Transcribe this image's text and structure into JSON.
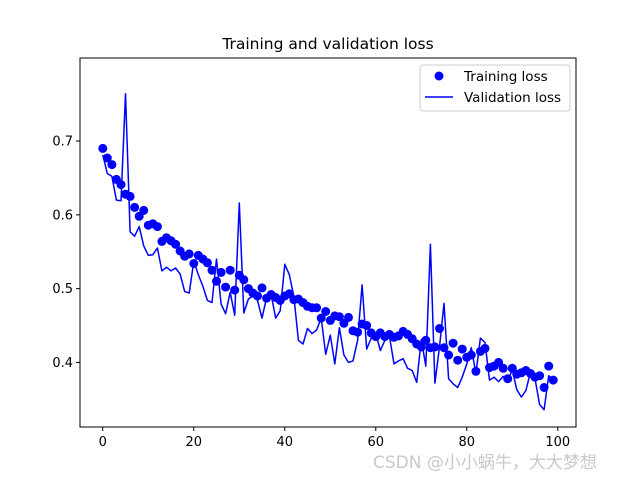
{
  "chart_data": {
    "type": "line",
    "title": "Training and validation loss",
    "xlabel": "",
    "ylabel": "",
    "xlim": [
      -5,
      104
    ],
    "ylim": [
      0.3125,
      0.8125
    ],
    "xticks": [
      0,
      20,
      40,
      60,
      80,
      100
    ],
    "yticks": [
      0.4,
      0.5,
      0.6,
      0.7
    ],
    "xtick_labels": [
      "0",
      "20",
      "40",
      "60",
      "80",
      "100"
    ],
    "ytick_labels": [
      "0.4",
      "0.5",
      "0.6",
      "0.7"
    ],
    "grid": false,
    "legend_position": "upper right",
    "legend": [
      "Training loss",
      "Validation loss"
    ],
    "series": [
      {
        "name": "Training loss",
        "style": "markers",
        "color": "#0000ff",
        "x": [
          0,
          1,
          2,
          3,
          4,
          5,
          6,
          7,
          8,
          9,
          10,
          11,
          12,
          13,
          14,
          15,
          16,
          17,
          18,
          19,
          20,
          21,
          22,
          23,
          24,
          25,
          26,
          27,
          28,
          29,
          30,
          31,
          32,
          33,
          34,
          35,
          36,
          37,
          38,
          39,
          40,
          41,
          42,
          43,
          44,
          45,
          46,
          47,
          48,
          49,
          50,
          51,
          52,
          53,
          54,
          55,
          56,
          57,
          58,
          59,
          60,
          61,
          62,
          63,
          64,
          65,
          66,
          67,
          68,
          69,
          70,
          71,
          72,
          73,
          74,
          75,
          76,
          77,
          78,
          79,
          80,
          81,
          82,
          83,
          84,
          85,
          86,
          87,
          88,
          89,
          90,
          91,
          92,
          93,
          94,
          95,
          96,
          97,
          98,
          99
        ],
        "values": [
          0.69,
          0.677,
          0.668,
          0.648,
          0.641,
          0.628,
          0.625,
          0.61,
          0.598,
          0.606,
          0.586,
          0.588,
          0.584,
          0.564,
          0.569,
          0.565,
          0.56,
          0.551,
          0.544,
          0.547,
          0.534,
          0.545,
          0.54,
          0.535,
          0.525,
          0.51,
          0.522,
          0.502,
          0.525,
          0.498,
          0.518,
          0.512,
          0.5,
          0.494,
          0.49,
          0.501,
          0.487,
          0.492,
          0.488,
          0.484,
          0.49,
          0.493,
          0.485,
          0.486,
          0.481,
          0.476,
          0.474,
          0.474,
          0.46,
          0.469,
          0.457,
          0.463,
          0.462,
          0.453,
          0.461,
          0.443,
          0.441,
          0.452,
          0.45,
          0.44,
          0.435,
          0.44,
          0.435,
          0.438,
          0.434,
          0.436,
          0.442,
          0.438,
          0.432,
          0.425,
          0.421,
          0.43,
          0.42,
          0.421,
          0.446,
          0.42,
          0.41,
          0.426,
          0.403,
          0.418,
          0.407,
          0.41,
          0.388,
          0.415,
          0.419,
          0.393,
          0.395,
          0.4,
          0.392,
          0.378,
          0.392,
          0.384,
          0.386,
          0.389,
          0.385,
          0.38,
          0.382,
          0.366,
          0.395,
          0.376
        ]
      },
      {
        "name": "Validation loss",
        "style": "line",
        "color": "#0000ff",
        "x": [
          0,
          1,
          2,
          3,
          4,
          5,
          6,
          7,
          8,
          9,
          10,
          11,
          12,
          13,
          14,
          15,
          16,
          17,
          18,
          19,
          20,
          21,
          22,
          23,
          24,
          25,
          26,
          27,
          28,
          29,
          30,
          31,
          32,
          33,
          34,
          35,
          36,
          37,
          38,
          39,
          40,
          41,
          42,
          43,
          44,
          45,
          46,
          47,
          48,
          49,
          50,
          51,
          52,
          53,
          54,
          55,
          56,
          57,
          58,
          59,
          60,
          61,
          62,
          63,
          64,
          65,
          66,
          67,
          68,
          69,
          70,
          71,
          72,
          73,
          74,
          75,
          76,
          77,
          78,
          79,
          80,
          81,
          82,
          83,
          84,
          85,
          86,
          87,
          88,
          89,
          90,
          91,
          92,
          93,
          94,
          95,
          96,
          97,
          98,
          99
        ],
        "values": [
          0.681,
          0.656,
          0.652,
          0.62,
          0.619,
          0.764,
          0.577,
          0.571,
          0.584,
          0.558,
          0.545,
          0.546,
          0.555,
          0.524,
          0.529,
          0.524,
          0.528,
          0.52,
          0.496,
          0.494,
          0.537,
          0.519,
          0.503,
          0.484,
          0.481,
          0.54,
          0.479,
          0.466,
          0.495,
          0.464,
          0.616,
          0.467,
          0.486,
          0.49,
          0.484,
          0.46,
          0.488,
          0.492,
          0.46,
          0.47,
          0.533,
          0.519,
          0.489,
          0.43,
          0.425,
          0.446,
          0.439,
          0.444,
          0.46,
          0.411,
          0.437,
          0.398,
          0.447,
          0.41,
          0.4,
          0.402,
          0.43,
          0.505,
          0.418,
          0.433,
          0.44,
          0.416,
          0.43,
          0.436,
          0.398,
          0.402,
          0.405,
          0.392,
          0.389,
          0.373,
          0.431,
          0.395,
          0.56,
          0.372,
          0.421,
          0.48,
          0.378,
          0.371,
          0.366,
          0.38,
          0.398,
          0.42,
          0.385,
          0.433,
          0.427,
          0.376,
          0.38,
          0.374,
          0.381,
          0.375,
          0.39,
          0.363,
          0.353,
          0.362,
          0.387,
          0.378,
          0.343,
          0.336,
          0.382,
          0.376
        ]
      }
    ]
  },
  "watermark": "CSDN @小小蜗牛，大大梦想"
}
